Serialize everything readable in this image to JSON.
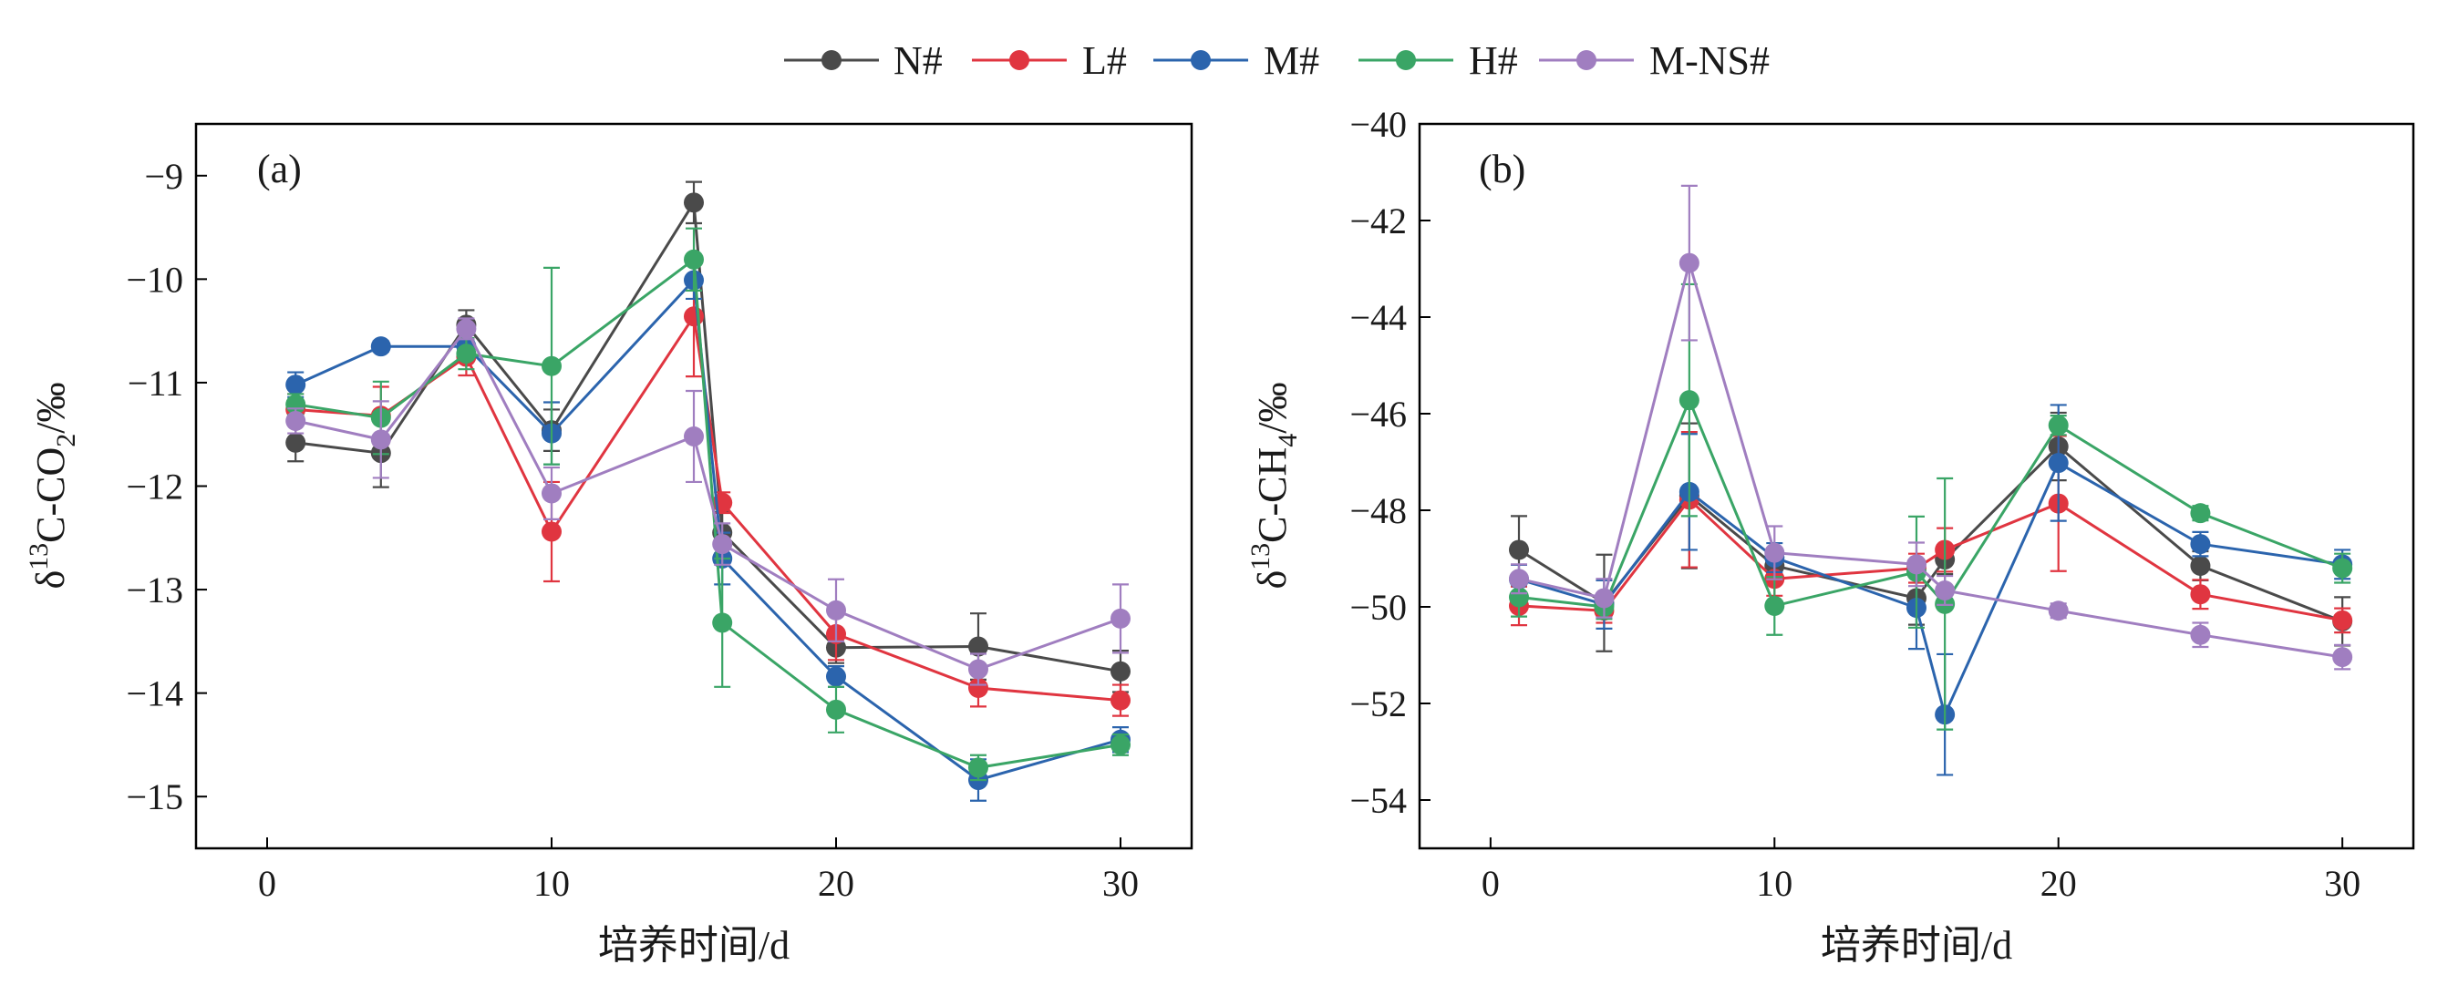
{
  "legend": {
    "entries": [
      {
        "name": "N#",
        "color": "#4a4a4a"
      },
      {
        "name": "L#",
        "color": "#e03540"
      },
      {
        "name": "M#",
        "color": "#2b64ad"
      },
      {
        "name": "H#",
        "color": "#3aa566"
      },
      {
        "name": "M-NS#",
        "color": "#a07ec0"
      }
    ]
  },
  "chart_data": [
    {
      "type": "line",
      "panel_label": "(a)",
      "title": "",
      "xlabel": "培养时间/d",
      "ylabel_parts": {
        "prefix": "δ",
        "sup": "13",
        "main": "C-CO",
        "sub": "2",
        "suffix": "/‰"
      },
      "xlim": [
        -2.5,
        32.5
      ],
      "ylim": [
        -15.5,
        -8.5
      ],
      "xticks": [
        0,
        10,
        20,
        30
      ],
      "yticks": [
        -15,
        -14,
        -13,
        -12,
        -11,
        -10,
        -9
      ],
      "x": [
        1,
        4,
        7,
        10,
        15,
        16,
        20,
        25,
        30
      ],
      "series": [
        {
          "name": "N#",
          "values": [
            -11.58,
            -11.68,
            -10.44,
            -11.46,
            -9.26,
            -12.45,
            -13.56,
            -13.55,
            -13.79
          ],
          "errors": [
            0.18,
            0.33,
            0.14,
            0.2,
            0.2,
            0.2,
            0.15,
            0.32,
            0.2
          ]
        },
        {
          "name": "L#",
          "values": [
            -11.26,
            -11.32,
            -10.75,
            -12.44,
            -10.36,
            -12.16,
            -13.43,
            -13.95,
            -14.07
          ],
          "errors": [
            0.15,
            0.28,
            0.18,
            0.48,
            0.58,
            0.1,
            0.25,
            0.18,
            0.15
          ]
        },
        {
          "name": "M#",
          "values": [
            -11.02,
            -10.65,
            -10.65,
            -11.49,
            -10.01,
            -12.7,
            -13.84,
            -14.84,
            -14.45
          ],
          "errors": [
            0.12,
            0.05,
            0.05,
            0.3,
            0.18,
            0.25,
            0.1,
            0.2,
            0.12
          ]
        },
        {
          "name": "H#",
          "values": [
            -11.21,
            -11.34,
            -10.72,
            -10.84,
            -9.81,
            -13.32,
            -14.16,
            -14.72,
            -14.5
          ],
          "errors": [
            0.1,
            0.35,
            0.15,
            0.95,
            0.3,
            0.62,
            0.22,
            0.12,
            0.1
          ]
        },
        {
          "name": "M-NS#",
          "values": [
            -11.37,
            -11.55,
            -10.48,
            -12.07,
            -11.52,
            -12.56,
            -13.2,
            -13.77,
            -13.28
          ],
          "errors": [
            0.12,
            0.37,
            0.1,
            0.25,
            0.44,
            0.2,
            0.3,
            0.15,
            0.33
          ]
        }
      ]
    },
    {
      "type": "line",
      "panel_label": "(b)",
      "title": "",
      "xlabel": "培养时间/d",
      "ylabel_parts": {
        "prefix": "δ",
        "sup": "13",
        "main": "C-CH",
        "sub": "4",
        "suffix": "/‰"
      },
      "xlim": [
        -2.5,
        32.5
      ],
      "ylim": [
        -55,
        -40
      ],
      "xticks": [
        0,
        10,
        20,
        30
      ],
      "yticks": [
        -54,
        -52,
        -50,
        -48,
        -46,
        -44,
        -42,
        -40
      ],
      "x": [
        1,
        4,
        7,
        10,
        15,
        16,
        20,
        25,
        30
      ],
      "series": [
        {
          "name": "N#",
          "values": [
            -48.82,
            -49.92,
            -47.7,
            -49.15,
            -49.82,
            -49.02,
            -46.68,
            -49.15,
            -50.3
          ],
          "errors": [
            0.7,
            1.0,
            1.5,
            0.35,
            0.55,
            0.3,
            0.7,
            0.3,
            0.5
          ]
        },
        {
          "name": "L#",
          "values": [
            -49.98,
            -50.08,
            -47.78,
            -49.42,
            -49.2,
            -48.82,
            -47.86,
            -49.74,
            -50.28
          ],
          "errors": [
            0.4,
            0.25,
            1.4,
            0.35,
            0.3,
            0.45,
            1.4,
            0.3,
            0.25
          ]
        },
        {
          "name": "M#",
          "values": [
            -49.43,
            -49.95,
            -47.62,
            -48.98,
            -50.02,
            -52.23,
            -47.02,
            -48.7,
            -49.12
          ],
          "errors": [
            0.3,
            0.5,
            1.2,
            0.3,
            0.85,
            1.25,
            1.2,
            0.25,
            0.3
          ]
        },
        {
          "name": "H#",
          "values": [
            -49.8,
            -50.0,
            -45.72,
            -49.98,
            -49.28,
            -49.94,
            -46.24,
            -48.06,
            -49.2
          ],
          "errors": [
            0.4,
            0.25,
            2.4,
            0.6,
            1.15,
            2.6,
            0.2,
            0.15,
            0.3
          ]
        },
        {
          "name": "M-NS#",
          "values": [
            -49.42,
            -49.82,
            -42.88,
            -48.88,
            -49.12,
            -49.66,
            -50.08,
            -50.58,
            -51.04
          ],
          "errors": [
            0.3,
            0.4,
            1.6,
            0.55,
            0.45,
            0.3,
            0.15,
            0.25,
            0.25
          ]
        }
      ]
    }
  ]
}
